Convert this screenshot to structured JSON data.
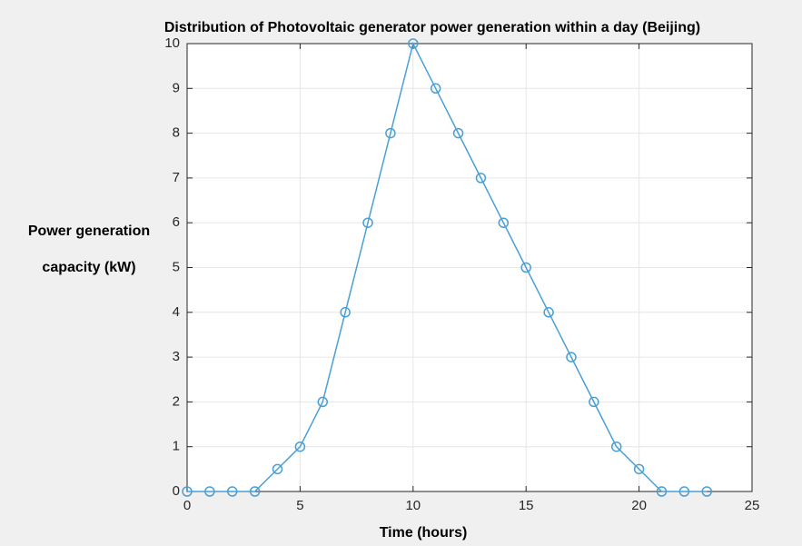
{
  "chart_data": {
    "type": "line",
    "title": "Distribution of Photovoltaic generator power generation within a day (Beijing)",
    "xlabel": "Time (hours)",
    "ylabel": [
      "Power generation",
      "capacity (kW)"
    ],
    "x": [
      0,
      1,
      2,
      3,
      4,
      5,
      6,
      7,
      8,
      9,
      10,
      11,
      12,
      13,
      14,
      15,
      16,
      17,
      18,
      19,
      20,
      21,
      22,
      23
    ],
    "series": [
      {
        "color": "#4a9fd5",
        "values": [
          0,
          0,
          0,
          0,
          0.5,
          1,
          2,
          4,
          6,
          8,
          10,
          9,
          8,
          7,
          6,
          5,
          4,
          3,
          2,
          1,
          0.5,
          0,
          0,
          0
        ]
      }
    ],
    "xlim": [
      0,
      25
    ],
    "xticks": [
      0,
      5,
      10,
      15,
      20,
      25
    ],
    "ylim": [
      0,
      10
    ],
    "yticks": [
      0,
      1,
      2,
      3,
      4,
      5,
      6,
      7,
      8,
      9,
      10
    ],
    "grid": true,
    "marker": "circle"
  }
}
